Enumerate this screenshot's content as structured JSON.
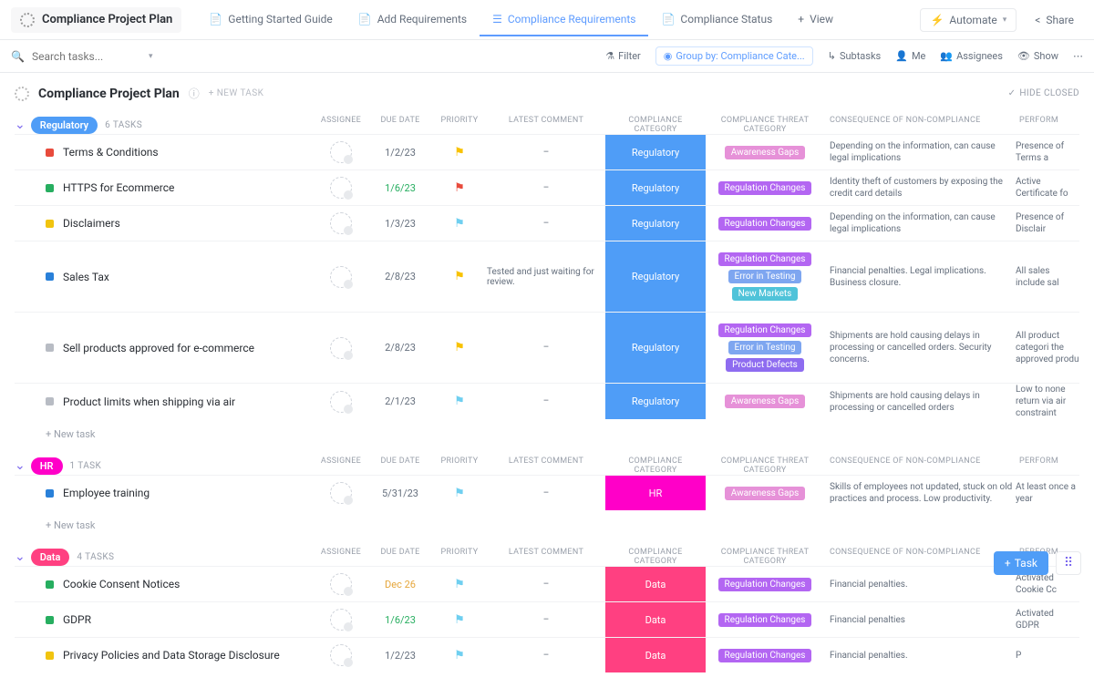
{
  "breadcrumb": {
    "title": "Compliance Project Plan"
  },
  "views": [
    {
      "label": "Getting Started Guide",
      "icon": "📄",
      "active": false
    },
    {
      "label": "Add Requirements",
      "icon": "📄",
      "active": false
    },
    {
      "label": "Compliance Requirements",
      "icon": "☰",
      "active": true
    },
    {
      "label": "Compliance Status",
      "icon": "📄",
      "active": false
    },
    {
      "label": "View",
      "icon": "+",
      "active": false
    }
  ],
  "toolbar_right": {
    "automate": "Automate",
    "share": "Share"
  },
  "search": {
    "placeholder": "Search tasks..."
  },
  "filterbar": {
    "filter": "Filter",
    "group_by": "Group by: Compliance Cate...",
    "subtasks": "Subtasks",
    "me": "Me",
    "assignees": "Assignees",
    "show": "Show"
  },
  "page": {
    "title": "Compliance Project Plan",
    "new_task": "+ NEW TASK",
    "hide_closed": "HIDE CLOSED"
  },
  "columns": {
    "assignee": "ASSIGNEE",
    "due": "DUE DATE",
    "priority": "PRIORITY",
    "comment": "LATEST COMMENT",
    "category": "COMPLIANCE CATEGORY",
    "threat": "COMPLIANCE THREAT CATEGORY",
    "consequence": "CONSEQUENCE OF NON-COMPLIANCE",
    "perform": "PERFORM"
  },
  "colors": {
    "regulatory_pill": "#4f9df7",
    "regulatory_block": "#4f9df7",
    "hr_pill": "#ff00c8",
    "hr_block": "#ff00c8",
    "data_pill": "#ff4081",
    "data_block": "#ff4081",
    "tag_awareness": "#e691d8",
    "tag_regulation": "#b366f2",
    "tag_error": "#7ea6f0",
    "tag_newmarkets": "#4fc3d9",
    "tag_defects": "#8e6cf0",
    "flag_yellow": "#f8c200",
    "flag_red": "#e84b3c",
    "flag_cyan": "#6fcff0",
    "status_red": "#e84b3c",
    "status_green": "#27ae60",
    "status_yellow": "#f1c40f",
    "status_blue": "#2980d9",
    "status_grey": "#b8bcc4"
  },
  "groups": [
    {
      "name": "Regulatory",
      "pill_color": "#4f9df7",
      "count": "6 TASKS",
      "cat_color": "#4f9df7",
      "cat_label": "Regulatory",
      "tasks": [
        {
          "status": "#e84b3c",
          "name": "Terms & Conditions",
          "due": "1/2/23",
          "due_color": "#656f7d",
          "flag": "#f8c200",
          "comment": "–",
          "tags": [
            {
              "t": "Awareness Gaps",
              "c": "#e691d8"
            }
          ],
          "cons": "Depending on the information, can cause legal implications",
          "perf": "Presence of Terms a"
        },
        {
          "status": "#27ae60",
          "name": "HTTPS for Ecommerce",
          "due": "1/6/23",
          "due_color": "#27ae60",
          "flag": "#e84b3c",
          "comment": "–",
          "tags": [
            {
              "t": "Regulation Changes",
              "c": "#b366f2"
            }
          ],
          "cons": "Identity theft of customers by exposing the credit card details",
          "perf": "Active Certificate fo"
        },
        {
          "status": "#f1c40f",
          "name": "Disclaimers",
          "due": "1/3/23",
          "due_color": "#656f7d",
          "flag": "#6fcff0",
          "comment": "–",
          "tags": [
            {
              "t": "Regulation Changes",
              "c": "#b366f2"
            }
          ],
          "cons": "Depending on the information, can cause legal implications",
          "perf": "Presence of Disclair"
        },
        {
          "status": "#2980d9",
          "name": "Sales Tax",
          "due": "2/8/23",
          "due_color": "#656f7d",
          "flag": "#f8c200",
          "comment": "Tested and just waiting for review.",
          "tags": [
            {
              "t": "Regulation Changes",
              "c": "#b366f2"
            },
            {
              "t": "Error in Testing",
              "c": "#7ea6f0"
            },
            {
              "t": "New Markets",
              "c": "#4fc3d9"
            }
          ],
          "cons": "Financial penalties. Legal implications. Business closure.",
          "perf": "All sales include sal"
        },
        {
          "status": "#b8bcc4",
          "name": "Sell products approved for e-commerce",
          "due": "2/8/23",
          "due_color": "#656f7d",
          "flag": "#f8c200",
          "comment": "–",
          "tags": [
            {
              "t": "Regulation Changes",
              "c": "#b366f2"
            },
            {
              "t": "Error in Testing",
              "c": "#7ea6f0"
            },
            {
              "t": "Product Defects",
              "c": "#8e6cf0"
            }
          ],
          "cons": "Shipments are hold causing delays in processing or cancelled orders. Security concerns.",
          "perf": "All product categori the approved produ"
        },
        {
          "status": "#b8bcc4",
          "name": "Product limits when shipping via air",
          "due": "2/1/23",
          "due_color": "#656f7d",
          "flag": "#6fcff0",
          "comment": "–",
          "tags": [
            {
              "t": "Awareness Gaps",
              "c": "#e691d8"
            }
          ],
          "cons": "Shipments are hold causing delays in processing or cancelled orders",
          "perf": "Low to none return via air constraint"
        }
      ],
      "show_new_task": true
    },
    {
      "name": "HR",
      "pill_color": "#ff00c8",
      "count": "1 TASK",
      "cat_color": "#ff00c8",
      "cat_label": "HR",
      "tasks": [
        {
          "status": "#2980d9",
          "name": "Employee training",
          "due": "5/31/23",
          "due_color": "#656f7d",
          "flag": "#6fcff0",
          "comment": "–",
          "tags": [
            {
              "t": "Awareness Gaps",
              "c": "#e691d8"
            }
          ],
          "cons": "Skills of employees not updated, stuck on old practices and process. Low productivity.",
          "perf": "At least once a year"
        }
      ],
      "show_new_task": true
    },
    {
      "name": "Data",
      "pill_color": "#ff4081",
      "count": "4 TASKS",
      "cat_color": "#ff4081",
      "cat_label": "Data",
      "tasks": [
        {
          "status": "#27ae60",
          "name": "Cookie Consent Notices",
          "due": "Dec 26",
          "due_color": "#e6a73c",
          "flag": "#6fcff0",
          "comment": "–",
          "tags": [
            {
              "t": "Regulation Changes",
              "c": "#b366f2"
            }
          ],
          "cons": "Financial penalties.",
          "perf": "Activated Cookie Cc"
        },
        {
          "status": "#27ae60",
          "name": "GDPR",
          "due": "1/6/23",
          "due_color": "#27ae60",
          "flag": "#6fcff0",
          "comment": "–",
          "tags": [
            {
              "t": "Regulation Changes",
              "c": "#b366f2"
            }
          ],
          "cons": "Financial penalties",
          "perf": "Activated GDPR"
        },
        {
          "status": "#f1c40f",
          "name": "Privacy Policies and Data Storage Disclosure",
          "due": "1/2/23",
          "due_color": "#656f7d",
          "flag": "#6fcff0",
          "comment": "–",
          "tags": [
            {
              "t": "Regulation Changes",
              "c": "#b366f2"
            }
          ],
          "cons": "Financial penalties.",
          "perf": "P"
        }
      ],
      "show_new_task": false
    }
  ],
  "new_task_label": "+ New task",
  "fab": {
    "task": "Task"
  }
}
